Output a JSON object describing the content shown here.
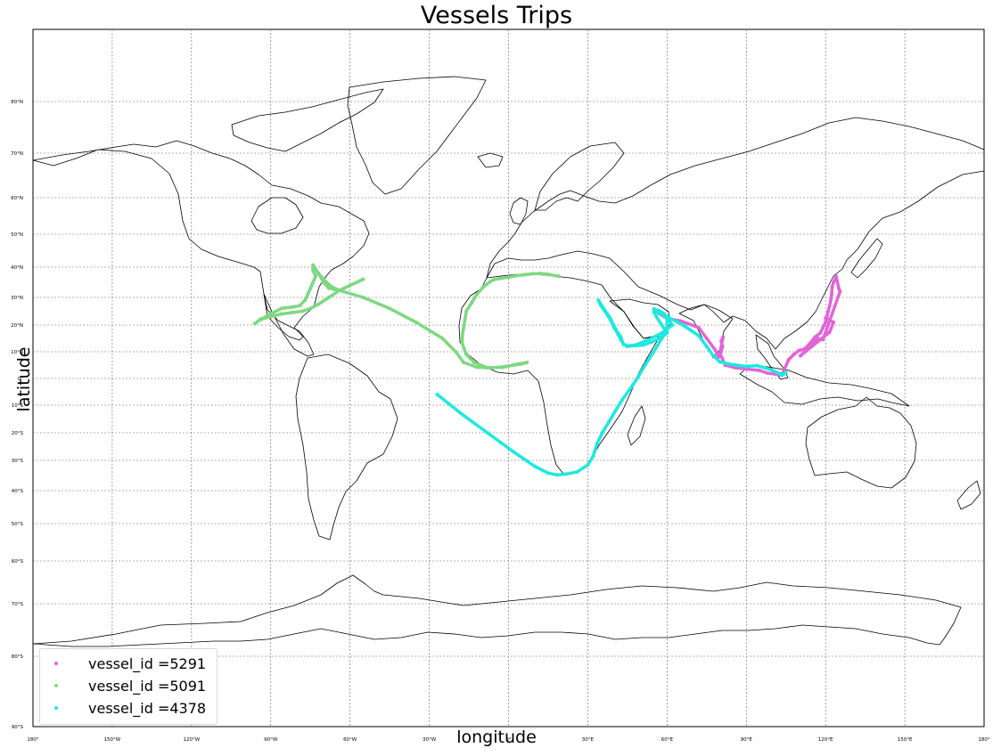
{
  "title": "Vessels Trips",
  "xlabel": "longitude",
  "ylabel": "latitude",
  "lat_ticks": [
    "80°N",
    "70°N",
    "60°N",
    "50°N",
    "40°N",
    "30°N",
    "20°N",
    "10°N",
    "0°",
    "10°S",
    "20°S",
    "30°S",
    "40°S",
    "50°S",
    "60°S",
    "70°S",
    "80°S",
    "90°S"
  ],
  "lon_ticks": [
    "180°",
    "150°W",
    "120°W",
    "90°W",
    "60°W",
    "30°W",
    "0°",
    "30°E",
    "60°E",
    "90°E",
    "120°E",
    "150°E",
    "180°"
  ],
  "legend": {
    "placement": "lower-left",
    "items": [
      {
        "label": "vessel_id =5291",
        "color": "#e066d6"
      },
      {
        "label": "vessel_id =5091",
        "color": "#7ed882"
      },
      {
        "label": "vessel_id =4378",
        "color": "#1fe8de"
      }
    ]
  },
  "chart_data": {
    "type": "map",
    "projection": "mercator",
    "xlim": [
      -180,
      180
    ],
    "ylim": [
      -90,
      90
    ],
    "grid": true,
    "series": [
      {
        "name": "vessel_id =5291",
        "color": "#e066d6",
        "points": [
          [
            55.5,
            25.2
          ],
          [
            57,
            24.2
          ],
          [
            59,
            23
          ],
          [
            61,
            22.2
          ],
          [
            65,
            21.5
          ],
          [
            68,
            20.5
          ],
          [
            72,
            19
          ],
          [
            75,
            15
          ],
          [
            78,
            11
          ],
          [
            79.5,
            8
          ],
          [
            80.5,
            10
          ],
          [
            81,
            12
          ],
          [
            80.5,
            14
          ],
          [
            81.2,
            15.5
          ],
          [
            80,
            9.5
          ],
          [
            82,
            5
          ],
          [
            86,
            4
          ],
          [
            90,
            3.5
          ],
          [
            95,
            3
          ],
          [
            98,
            2
          ],
          [
            103.5,
            1.3
          ],
          [
            106,
            7
          ],
          [
            108,
            9
          ],
          [
            110,
            10.5
          ],
          [
            112,
            11
          ],
          [
            114,
            13
          ],
          [
            116,
            15.5
          ],
          [
            118,
            17
          ],
          [
            119,
            19
          ],
          [
            120,
            21
          ],
          [
            120.5,
            23
          ],
          [
            121,
            25
          ],
          [
            121.5,
            26.8
          ],
          [
            122,
            29
          ],
          [
            122.3,
            31
          ],
          [
            122.5,
            33.5
          ],
          [
            123,
            35
          ],
          [
            124,
            37
          ],
          [
            125,
            33
          ],
          [
            125.5,
            32
          ],
          [
            119,
            14.5
          ],
          [
            117,
            15
          ],
          [
            115,
            13
          ],
          [
            113,
            11
          ],
          [
            110.5,
            8.5
          ],
          [
            121.5,
            17.3
          ],
          [
            123,
            21
          ],
          [
            120,
            22.5
          ]
        ]
      },
      {
        "name": "vessel_id =5091",
        "color": "#7ed882",
        "points": [
          [
            -74,
            40.6
          ],
          [
            -72,
            38
          ],
          [
            -70,
            36
          ],
          [
            -67,
            33.5
          ],
          [
            -64,
            32.3
          ],
          [
            -55,
            36
          ],
          [
            -64,
            32.3
          ],
          [
            -68,
            30
          ],
          [
            -72,
            27.5
          ],
          [
            -75,
            26
          ],
          [
            -78,
            25
          ],
          [
            -82,
            24.5
          ],
          [
            -86,
            24
          ],
          [
            -90,
            23
          ],
          [
            -94,
            22
          ],
          [
            -96,
            20.5
          ],
          [
            -94,
            22
          ],
          [
            -90,
            24
          ],
          [
            -86,
            26
          ],
          [
            -82,
            26.5
          ],
          [
            -79,
            27
          ],
          [
            -77,
            29
          ],
          [
            -76,
            31
          ],
          [
            -75,
            33
          ],
          [
            -74,
            35
          ],
          [
            -73,
            37
          ],
          [
            -74,
            39
          ],
          [
            -74,
            40.6
          ],
          [
            -72,
            38
          ],
          [
            -70,
            35
          ],
          [
            -68,
            33
          ],
          [
            -64,
            32.3
          ],
          [
            -55,
            30
          ],
          [
            -45,
            26
          ],
          [
            -35,
            21
          ],
          [
            -25,
            15
          ],
          [
            -20,
            10
          ],
          [
            -17,
            6
          ],
          [
            -12,
            4.2
          ],
          [
            -7,
            4
          ],
          [
            -3,
            4.2
          ],
          [
            2,
            5
          ],
          [
            5,
            5.4
          ],
          [
            7,
            6
          ],
          [
            3,
            5.3
          ],
          [
            -2,
            4.2
          ],
          [
            -8,
            4
          ],
          [
            -13,
            6
          ],
          [
            -16,
            9
          ],
          [
            -17.5,
            13
          ],
          [
            -17.5,
            16
          ],
          [
            -17,
            19
          ],
          [
            -16.5,
            22
          ],
          [
            -16,
            25
          ],
          [
            -14,
            28
          ],
          [
            -12,
            31
          ],
          [
            -9.5,
            33.5
          ],
          [
            -7,
            35.2
          ],
          [
            -5.5,
            35.9
          ],
          [
            -3,
            36.3
          ],
          [
            0,
            36.7
          ],
          [
            3,
            37.2
          ],
          [
            6,
            37.5
          ],
          [
            9,
            37.8
          ],
          [
            12,
            37.9
          ],
          [
            15,
            37.6
          ],
          [
            19,
            37
          ]
        ]
      },
      {
        "name": "vessel_id =4378",
        "color": "#1fe8de",
        "points": [
          [
            -27,
            -6
          ],
          [
            -18,
            -13
          ],
          [
            -8,
            -20
          ],
          [
            2,
            -27
          ],
          [
            10,
            -32
          ],
          [
            15,
            -34.2
          ],
          [
            18.5,
            -34.8
          ],
          [
            22,
            -34.5
          ],
          [
            26,
            -33.8
          ],
          [
            30,
            -31.5
          ],
          [
            32,
            -28.5
          ],
          [
            33.5,
            -24
          ],
          [
            35.5,
            -20
          ],
          [
            38,
            -16
          ],
          [
            40.5,
            -12
          ],
          [
            43,
            -8
          ],
          [
            46,
            -4
          ],
          [
            49,
            0.5
          ],
          [
            52,
            5.5
          ],
          [
            55,
            10
          ],
          [
            58,
            15
          ],
          [
            60,
            18
          ],
          [
            60,
            22
          ],
          [
            59,
            24
          ],
          [
            57,
            25.2
          ],
          [
            55,
            25.8
          ],
          [
            57,
            24.5
          ],
          [
            60,
            22.5
          ],
          [
            62,
            20
          ],
          [
            58,
            17
          ],
          [
            53,
            14.5
          ],
          [
            48,
            12.5
          ],
          [
            45,
            12.2
          ],
          [
            43.5,
            12.8
          ],
          [
            42.5,
            14.5
          ],
          [
            41.5,
            16.5
          ],
          [
            40,
            19
          ],
          [
            38.5,
            22
          ],
          [
            36.5,
            25
          ],
          [
            35,
            27
          ],
          [
            34,
            29
          ],
          [
            36,
            26
          ],
          [
            38.5,
            22.5
          ],
          [
            40.5,
            18.5
          ],
          [
            42.5,
            15.5
          ],
          [
            43.5,
            12.8
          ],
          [
            45,
            12
          ],
          [
            48,
            12.3
          ],
          [
            51,
            12.5
          ],
          [
            54,
            13.5
          ],
          [
            57,
            15
          ],
          [
            60,
            17
          ],
          [
            58,
            20
          ],
          [
            56,
            23
          ],
          [
            55,
            24.8
          ],
          [
            58,
            24.5
          ],
          [
            61,
            22.5
          ],
          [
            64,
            21
          ],
          [
            66,
            20
          ],
          [
            69,
            18
          ],
          [
            72,
            16
          ],
          [
            75,
            12
          ],
          [
            77.5,
            8.5
          ],
          [
            80,
            6.2
          ],
          [
            83,
            5.5
          ],
          [
            86,
            5
          ],
          [
            90,
            4.5
          ],
          [
            94,
            4.8
          ],
          [
            97,
            4
          ],
          [
            100,
            3
          ],
          [
            102,
            2
          ],
          [
            104,
            1.5
          ],
          [
            105,
            2.3
          ],
          [
            103.5,
            1.2
          ]
        ]
      }
    ]
  }
}
